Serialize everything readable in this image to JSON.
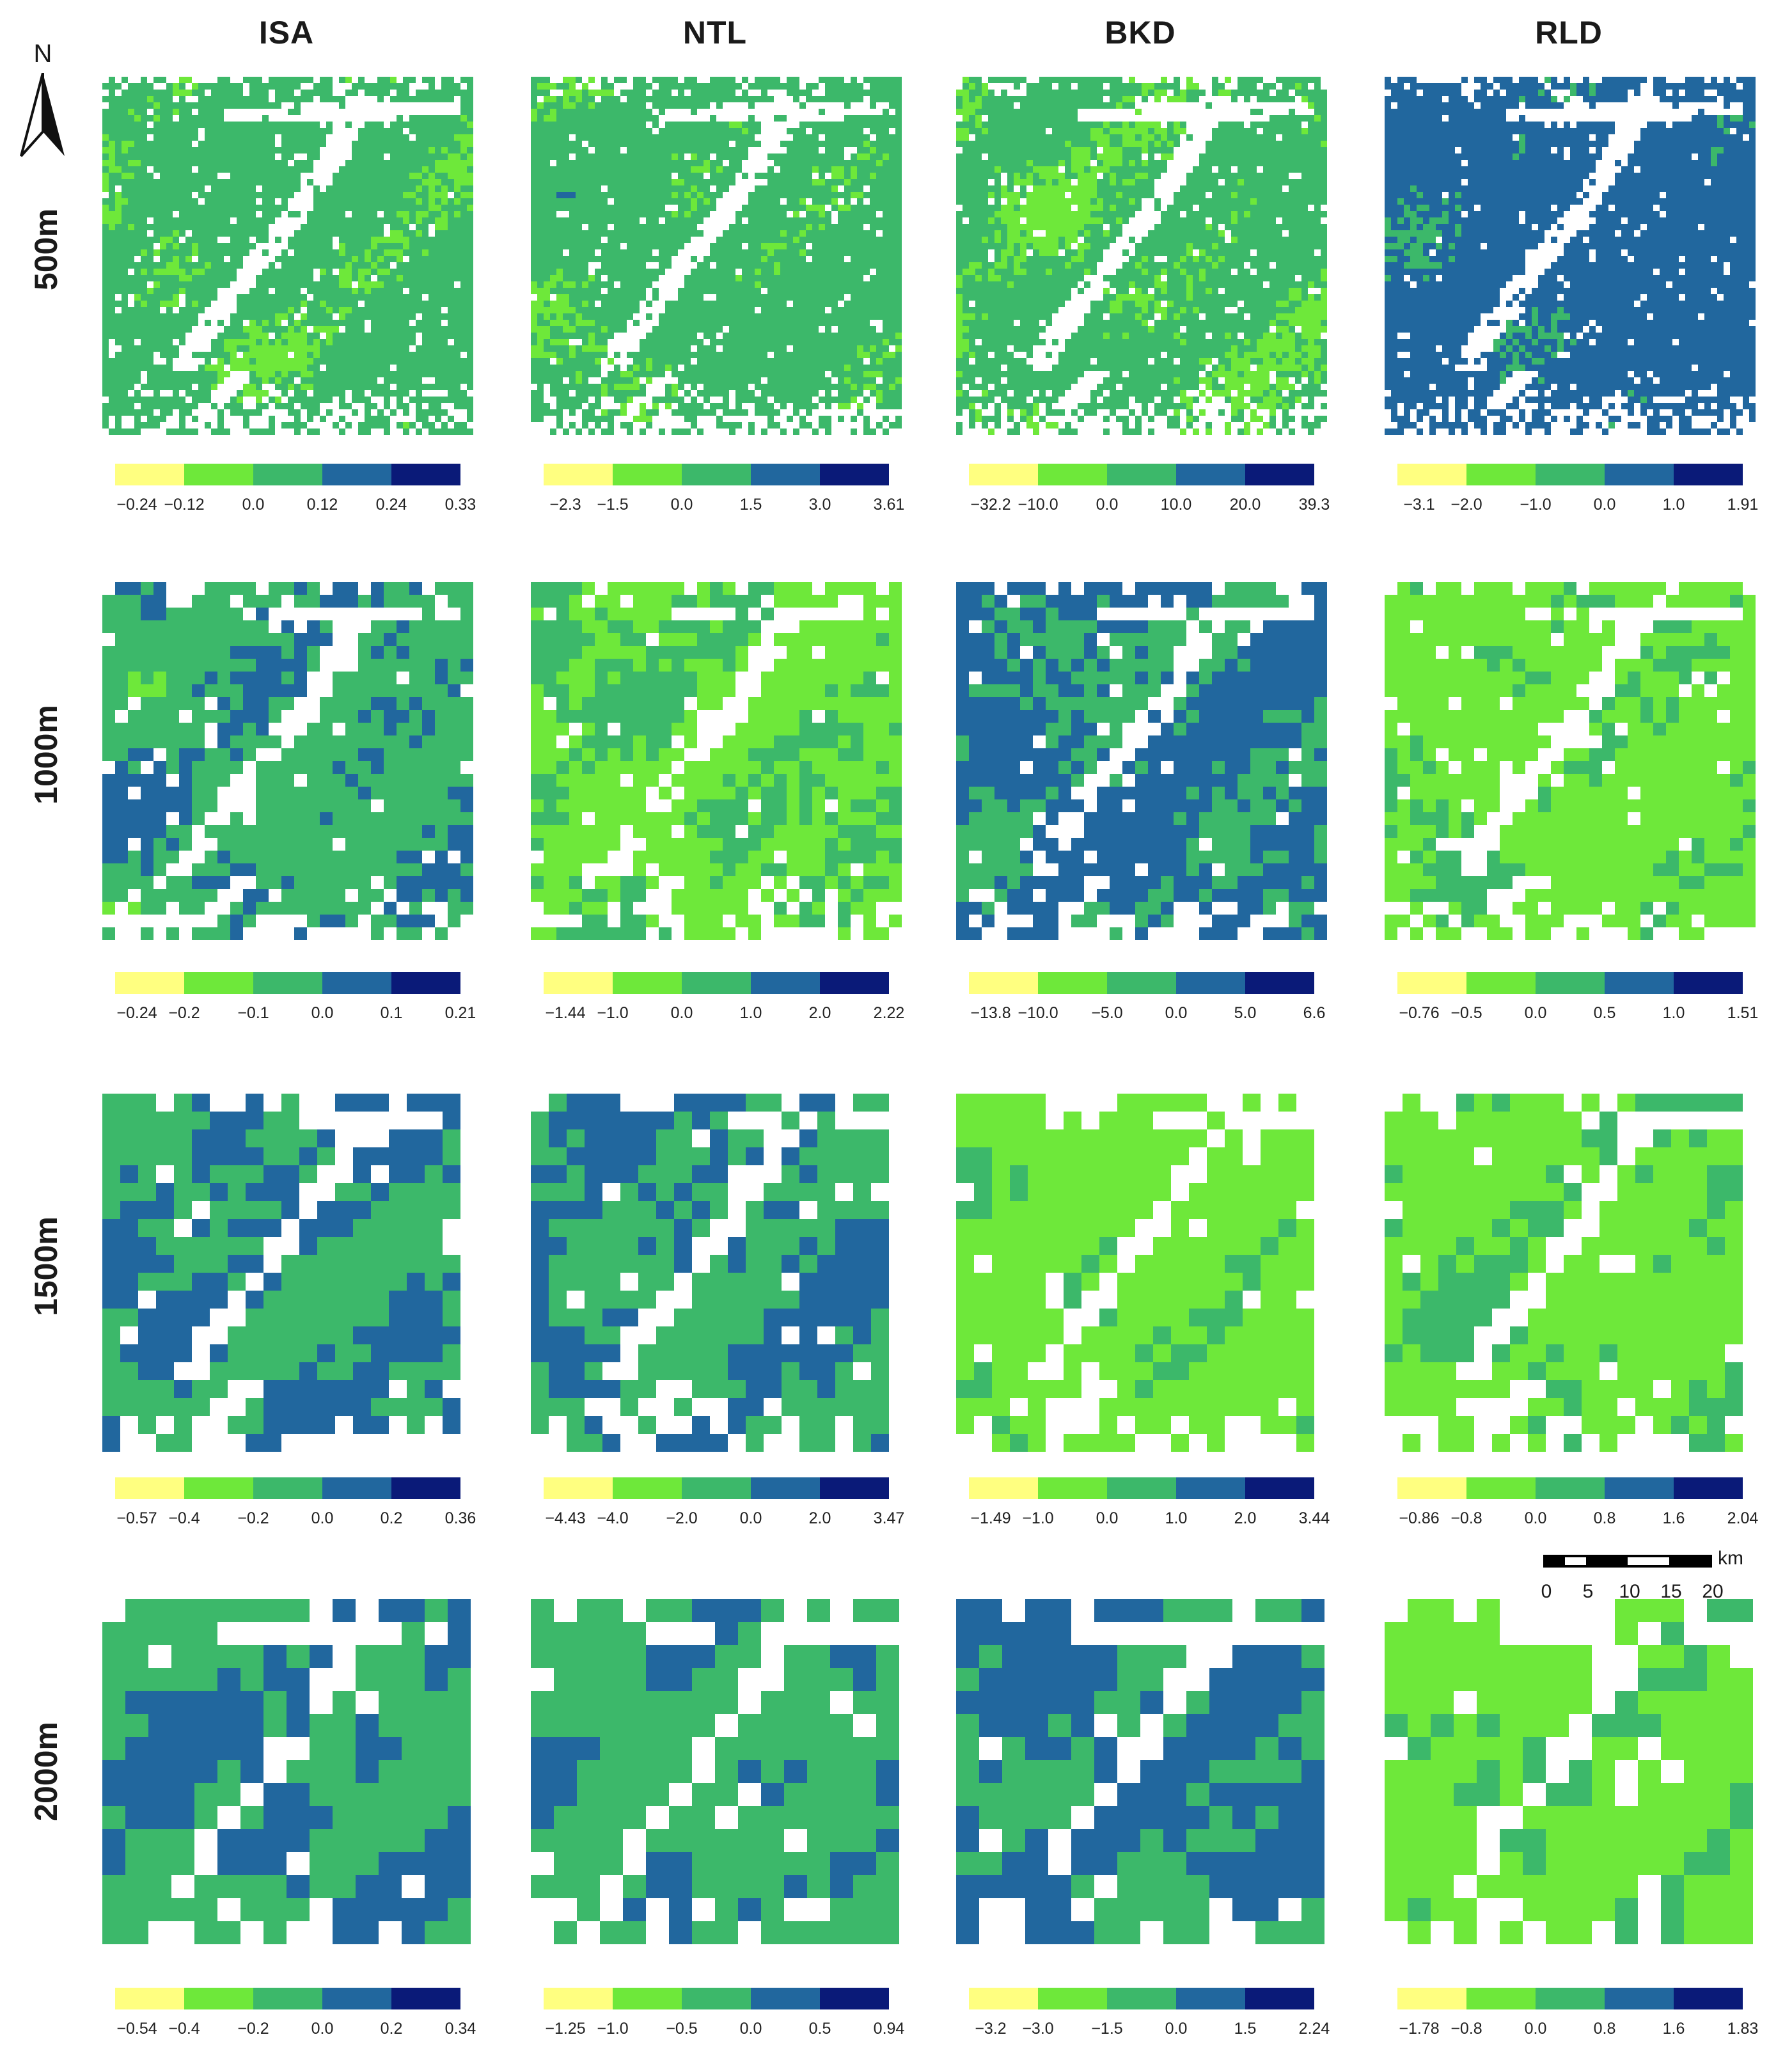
{
  "columns": [
    "ISA",
    "NTL",
    "BKD",
    "RLD"
  ],
  "rows": [
    "500m",
    "1000m",
    "1500m",
    "2000m"
  ],
  "north_label": "N",
  "colors": [
    "#FFFF80",
    "#6EE83A",
    "#3CB86A",
    "#21679E",
    "#0A1A78"
  ],
  "legends": [
    [
      [
        "-0.24",
        "-0.12",
        "0.0",
        "0.12",
        "0.24",
        "0.33"
      ],
      [
        "-2.3",
        "-1.5",
        "0.0",
        "1.5",
        "3.0",
        "3.61"
      ],
      [
        "-32.2",
        "-10.0",
        "0.0",
        "10.0",
        "20.0",
        "39.3"
      ],
      [
        "-3.1",
        "-2.0",
        "-1.0",
        "0.0",
        "1.0",
        "1.91"
      ]
    ],
    [
      [
        "-0.24",
        "-0.2",
        "-0.1",
        "0.0",
        "0.1",
        "0.21"
      ],
      [
        "-1.44",
        "-1.0",
        "0.0",
        "1.0",
        "2.0",
        "2.22"
      ],
      [
        "-13.8",
        "-10.0",
        "-5.0",
        "0.0",
        "5.0",
        "6.6"
      ],
      [
        "-0.76",
        "-0.5",
        "0.0",
        "0.5",
        "1.0",
        "1.51"
      ]
    ],
    [
      [
        "-0.57",
        "-0.4",
        "-0.2",
        "0.0",
        "0.2",
        "0.36"
      ],
      [
        "-4.43",
        "-4.0",
        "-2.0",
        "0.0",
        "2.0",
        "3.47"
      ],
      [
        "-1.49",
        "-1.0",
        "0.0",
        "1.0",
        "2.0",
        "3.44"
      ],
      [
        "-0.86",
        "-0.8",
        "0.0",
        "0.8",
        "1.6",
        "2.04"
      ]
    ],
    [
      [
        "-0.54",
        "-0.4",
        "-0.2",
        "0.0",
        "0.2",
        "0.34"
      ],
      [
        "-1.25",
        "-1.0",
        "-0.5",
        "0.0",
        "0.5",
        "0.94"
      ],
      [
        "-3.2",
        "-3.0",
        "-1.5",
        "0.0",
        "1.5",
        "2.24"
      ],
      [
        "-1.78",
        "-0.8",
        "0.0",
        "0.8",
        "1.6",
        "1.83"
      ]
    ]
  ],
  "scale_bar": {
    "ticks": [
      "0",
      "5",
      "10",
      "15",
      "20"
    ],
    "unit": "km"
  }
}
